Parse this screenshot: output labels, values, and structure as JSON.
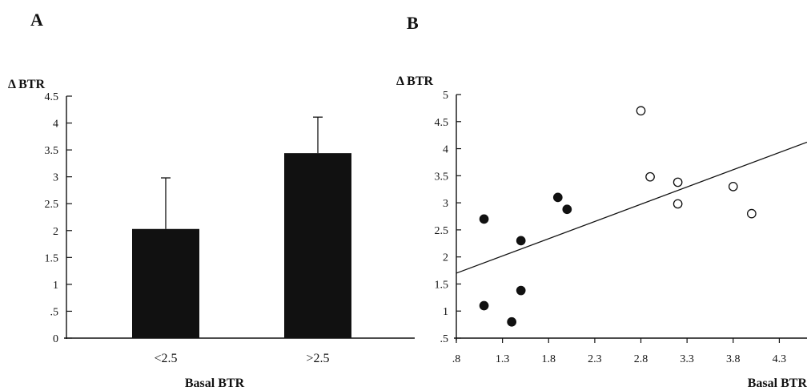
{
  "chart_data": [
    {
      "panel": "A",
      "type": "bar",
      "ylabel": "Δ BTR",
      "xlabel": "Basal BTR",
      "categories": [
        "<2.5",
        ">2.5"
      ],
      "values": [
        2.03,
        3.44
      ],
      "errors": [
        0.95,
        0.67
      ],
      "yticks": [
        "0",
        ".5",
        "1",
        "1.5",
        "2",
        "2.5",
        "3",
        "3.5",
        "4",
        "4.5"
      ],
      "ylim": [
        0,
        4.5
      ]
    },
    {
      "panel": "B",
      "type": "scatter",
      "ylabel": "Δ BTR",
      "xlabel": "Basal BTR",
      "xticks": [
        ".8",
        "1.3",
        "1.8",
        "2.3",
        "2.8",
        "3.3",
        "3.8",
        "4.3"
      ],
      "yticks": [
        ".5",
        "1",
        "1.5",
        "2",
        "2.5",
        "3",
        "3.5",
        "4",
        "4.5",
        "5"
      ],
      "xlim": [
        0.8,
        4.6
      ],
      "ylim": [
        0.5,
        5
      ],
      "series": [
        {
          "marker": "filled",
          "points": [
            [
              1.1,
              2.7
            ],
            [
              1.1,
              1.1
            ],
            [
              1.4,
              0.8
            ],
            [
              1.5,
              2.3
            ],
            [
              1.5,
              1.38
            ],
            [
              1.9,
              3.1
            ],
            [
              2.0,
              2.88
            ]
          ]
        },
        {
          "marker": "open",
          "points": [
            [
              2.8,
              4.7
            ],
            [
              2.9,
              3.48
            ],
            [
              3.2,
              3.38
            ],
            [
              3.2,
              2.98
            ],
            [
              3.8,
              3.3
            ],
            [
              4.0,
              2.8
            ]
          ]
        }
      ],
      "regression": {
        "x": [
          0.8,
          4.6
        ],
        "y": [
          1.7,
          4.12
        ]
      }
    }
  ]
}
